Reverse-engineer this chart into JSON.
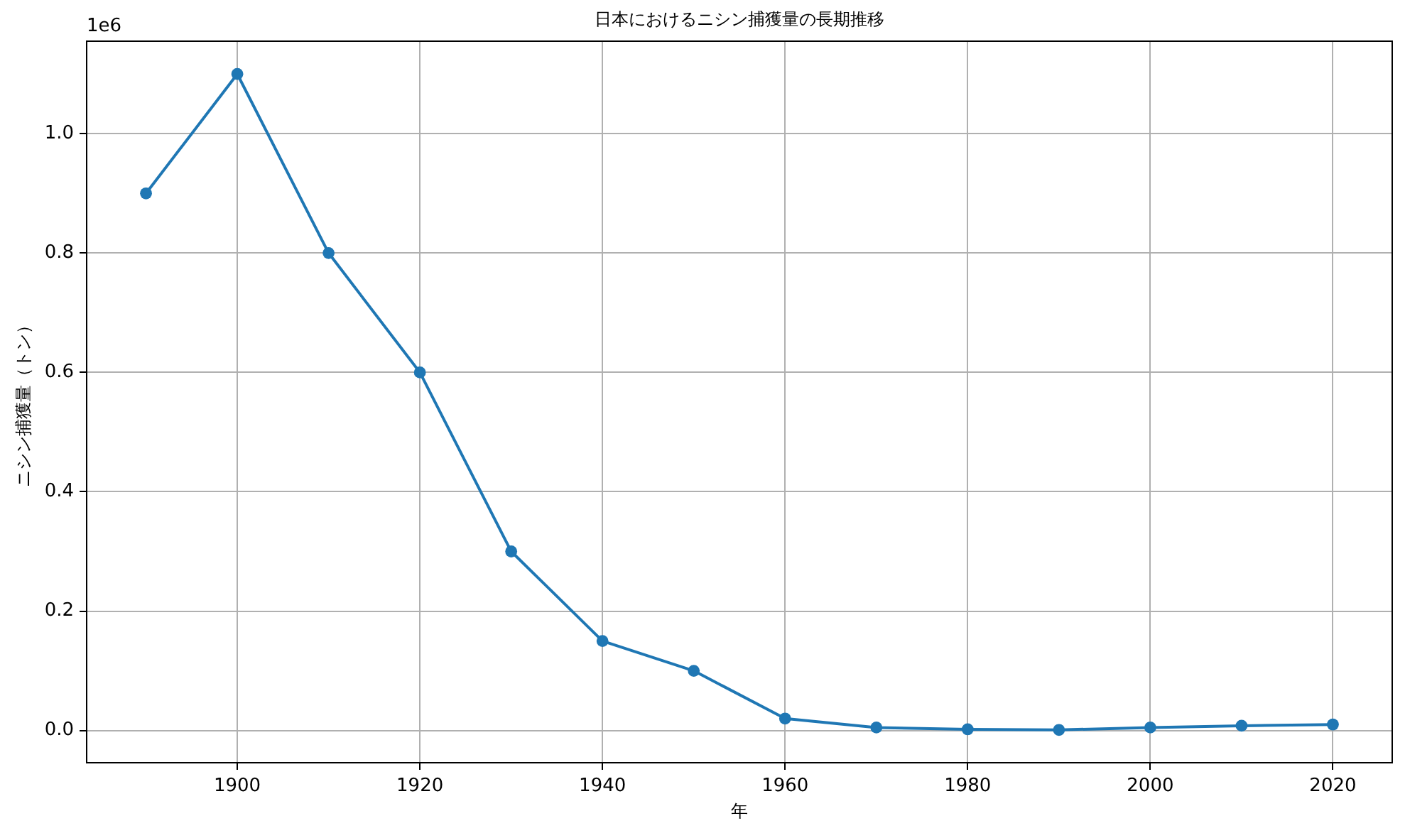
{
  "chart_data": {
    "type": "line",
    "title": "日本におけるニシン捕獲量の長期推移",
    "xlabel": "年",
    "ylabel": "ニシン捕獲量（トン）",
    "annotations": [
      "1e6"
    ],
    "x": [
      1890,
      1900,
      1910,
      1920,
      1930,
      1940,
      1950,
      1960,
      1970,
      1980,
      1990,
      2000,
      2010,
      2020
    ],
    "series": [
      {
        "color": "#1f77b4",
        "values": [
          0.9,
          1.1,
          0.8,
          0.6,
          0.3,
          0.15,
          0.1,
          0.02,
          0.005,
          0.002,
          0.001,
          0.005,
          0.008,
          0.01
        ]
      }
    ],
    "xlim": [
      1883.5,
      2026.5
    ],
    "xticks": [
      1900,
      1920,
      1940,
      1960,
      1980,
      2000,
      2020
    ],
    "ylim": [
      -0.054,
      1.155
    ],
    "yticks": [
      {
        "value": 0,
        "label": "0.0"
      },
      0.2,
      0.4,
      0.6,
      0.8,
      {
        "value": 1,
        "label": "1.0"
      }
    ],
    "grid": true,
    "legend": false,
    "marker": "circle",
    "line_style": "solid"
  }
}
